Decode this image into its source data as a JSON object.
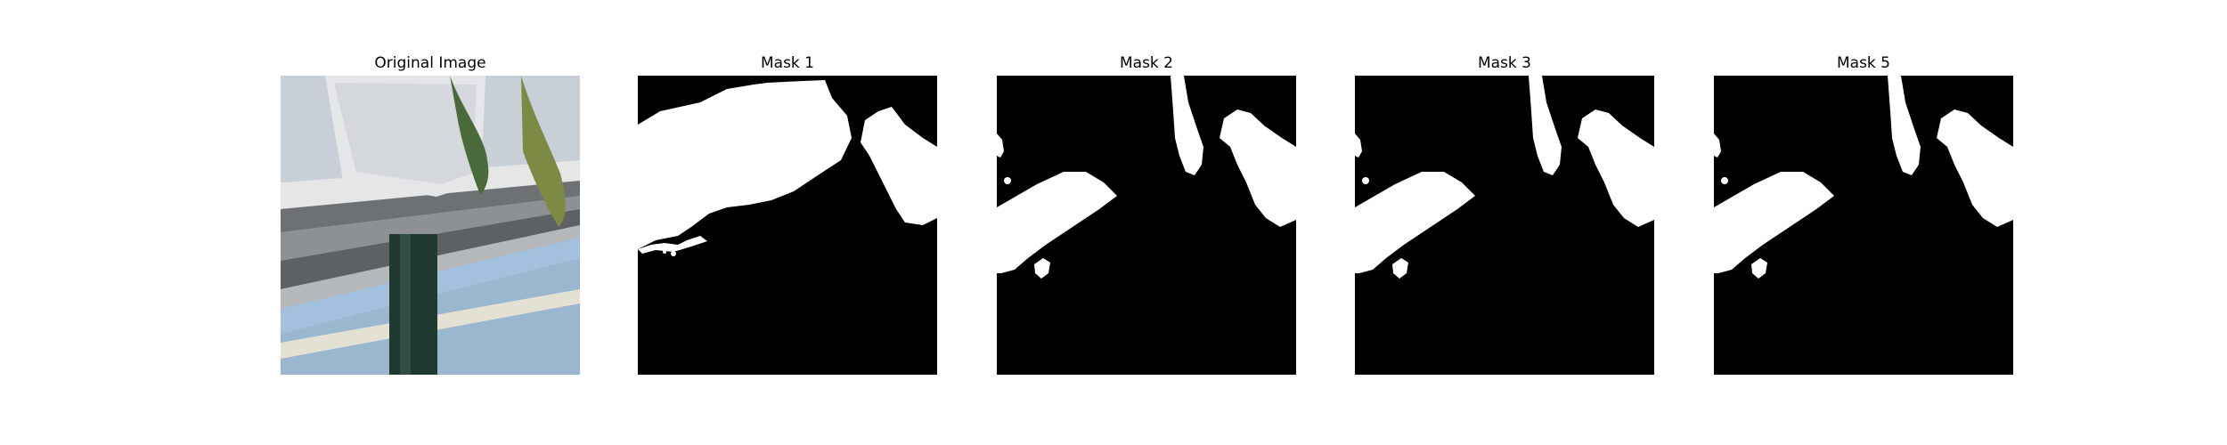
{
  "panels": [
    {
      "title": "Original Image",
      "kind": "photo"
    },
    {
      "title": "Mask 1",
      "kind": "mask"
    },
    {
      "title": "Mask 2",
      "kind": "mask"
    },
    {
      "title": "Mask 3",
      "kind": "mask"
    },
    {
      "title": "Mask 5",
      "kind": "mask"
    }
  ],
  "colors": {
    "background": "#ffffff",
    "mask_background": "#000000",
    "mask_foreground": "#ffffff",
    "title_text": "#000000"
  }
}
